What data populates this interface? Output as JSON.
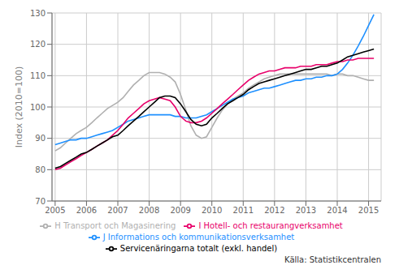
{
  "chart_data": {
    "type": "line",
    "ylabel": "Index (2010=100)",
    "annotations": [
      "Källa:  Statistikcentralen"
    ],
    "xlim": [
      2004.9,
      2015.4
    ],
    "ylim": [
      70,
      130
    ],
    "xticks": [
      2005,
      2006,
      2007,
      2008,
      2009,
      2010,
      2011,
      2012,
      2013,
      2014,
      2015
    ],
    "yticks": [
      70,
      80,
      90,
      100,
      110,
      120,
      130
    ],
    "grid": true,
    "legend": "bottom",
    "x": [
      2005.0,
      2005.17,
      2005.33,
      2005.5,
      2005.67,
      2005.83,
      2006.0,
      2006.17,
      2006.33,
      2006.5,
      2006.67,
      2006.83,
      2007.0,
      2007.17,
      2007.33,
      2007.5,
      2007.67,
      2007.83,
      2008.0,
      2008.17,
      2008.33,
      2008.5,
      2008.67,
      2008.83,
      2009.0,
      2009.17,
      2009.33,
      2009.5,
      2009.67,
      2009.83,
      2010.0,
      2010.17,
      2010.33,
      2010.5,
      2010.67,
      2010.83,
      2011.0,
      2011.17,
      2011.33,
      2011.5,
      2011.67,
      2011.83,
      2012.0,
      2012.17,
      2012.33,
      2012.5,
      2012.67,
      2012.83,
      2013.0,
      2013.17,
      2013.33,
      2013.5,
      2013.67,
      2013.83,
      2014.0,
      2014.17,
      2014.33,
      2014.5,
      2014.67,
      2014.83,
      2015.0,
      2015.17
    ],
    "series": [
      {
        "name": "H Transport och Magasinering",
        "color": "#b0b0b0",
        "values": [
          86.0,
          87.0,
          88.5,
          90.0,
          91.5,
          92.5,
          93.5,
          95.0,
          96.5,
          98.0,
          99.5,
          100.5,
          101.5,
          103.0,
          105.0,
          107.0,
          108.5,
          110.0,
          111.0,
          111.0,
          111.0,
          110.5,
          109.5,
          108.0,
          104.0,
          99.0,
          94.0,
          91.0,
          90.0,
          90.5,
          93.5,
          96.5,
          99.0,
          101.0,
          102.5,
          103.5,
          104.5,
          106.0,
          107.0,
          108.0,
          109.0,
          109.5,
          110.0,
          110.5,
          110.5,
          110.5,
          110.5,
          110.5,
          110.5,
          110.5,
          110.5,
          110.5,
          110.5,
          110.0,
          110.5,
          110.5,
          110.0,
          110.0,
          109.5,
          109.0,
          108.5,
          108.5
        ]
      },
      {
        "name": "J Informations och kommunikationsverksamhet",
        "color": "#1e90ff",
        "values": [
          88.0,
          88.5,
          89.0,
          89.5,
          89.5,
          90.0,
          90.0,
          90.5,
          91.0,
          91.5,
          92.0,
          92.5,
          93.5,
          94.5,
          95.5,
          96.0,
          96.5,
          97.0,
          97.5,
          97.5,
          97.5,
          97.5,
          97.5,
          97.0,
          97.0,
          96.5,
          96.5,
          96.5,
          97.0,
          97.5,
          98.5,
          99.5,
          100.5,
          101.5,
          102.5,
          103.0,
          103.5,
          104.5,
          105.0,
          105.5,
          106.0,
          106.0,
          106.5,
          107.0,
          107.5,
          108.0,
          108.5,
          108.5,
          109.0,
          109.0,
          109.5,
          109.5,
          110.0,
          110.0,
          110.5,
          112.0,
          114.0,
          116.5,
          119.5,
          122.5,
          126.0,
          129.5
        ]
      },
      {
        "name": "I Hotell- och restaurangverksamhet",
        "color": "#e8006a",
        "values": [
          80.0,
          80.5,
          81.5,
          82.5,
          83.5,
          84.5,
          85.5,
          86.5,
          87.5,
          88.5,
          89.5,
          91.0,
          92.5,
          94.5,
          96.5,
          98.0,
          99.5,
          101.0,
          102.0,
          102.5,
          103.0,
          102.5,
          102.0,
          100.0,
          97.0,
          95.5,
          95.0,
          95.0,
          95.5,
          96.5,
          98.0,
          99.5,
          101.0,
          102.5,
          104.0,
          105.5,
          107.0,
          108.5,
          109.5,
          110.5,
          111.0,
          111.5,
          111.5,
          112.0,
          112.5,
          112.5,
          112.5,
          113.0,
          113.0,
          113.0,
          113.5,
          113.5,
          113.5,
          114.0,
          114.5,
          114.5,
          115.0,
          115.0,
          115.5,
          115.5,
          115.5,
          115.5
        ]
      },
      {
        "name": "Servicenäringarna totalt  (exkl. handel)",
        "color": "#000000",
        "values": [
          80.5,
          81.0,
          82.0,
          83.0,
          84.0,
          85.0,
          85.5,
          86.5,
          87.5,
          88.5,
          89.5,
          90.5,
          91.0,
          92.5,
          94.0,
          95.5,
          97.0,
          98.5,
          100.0,
          101.5,
          103.0,
          103.5,
          103.5,
          103.0,
          101.0,
          98.5,
          96.0,
          94.5,
          94.0,
          94.5,
          96.5,
          98.0,
          99.5,
          101.0,
          102.0,
          103.0,
          104.0,
          105.5,
          106.5,
          107.5,
          108.0,
          108.5,
          109.0,
          109.5,
          110.0,
          110.5,
          111.0,
          111.5,
          112.0,
          112.0,
          112.5,
          113.0,
          113.0,
          113.5,
          114.0,
          115.0,
          116.0,
          116.5,
          117.0,
          117.5,
          118.0,
          118.5
        ]
      }
    ]
  }
}
